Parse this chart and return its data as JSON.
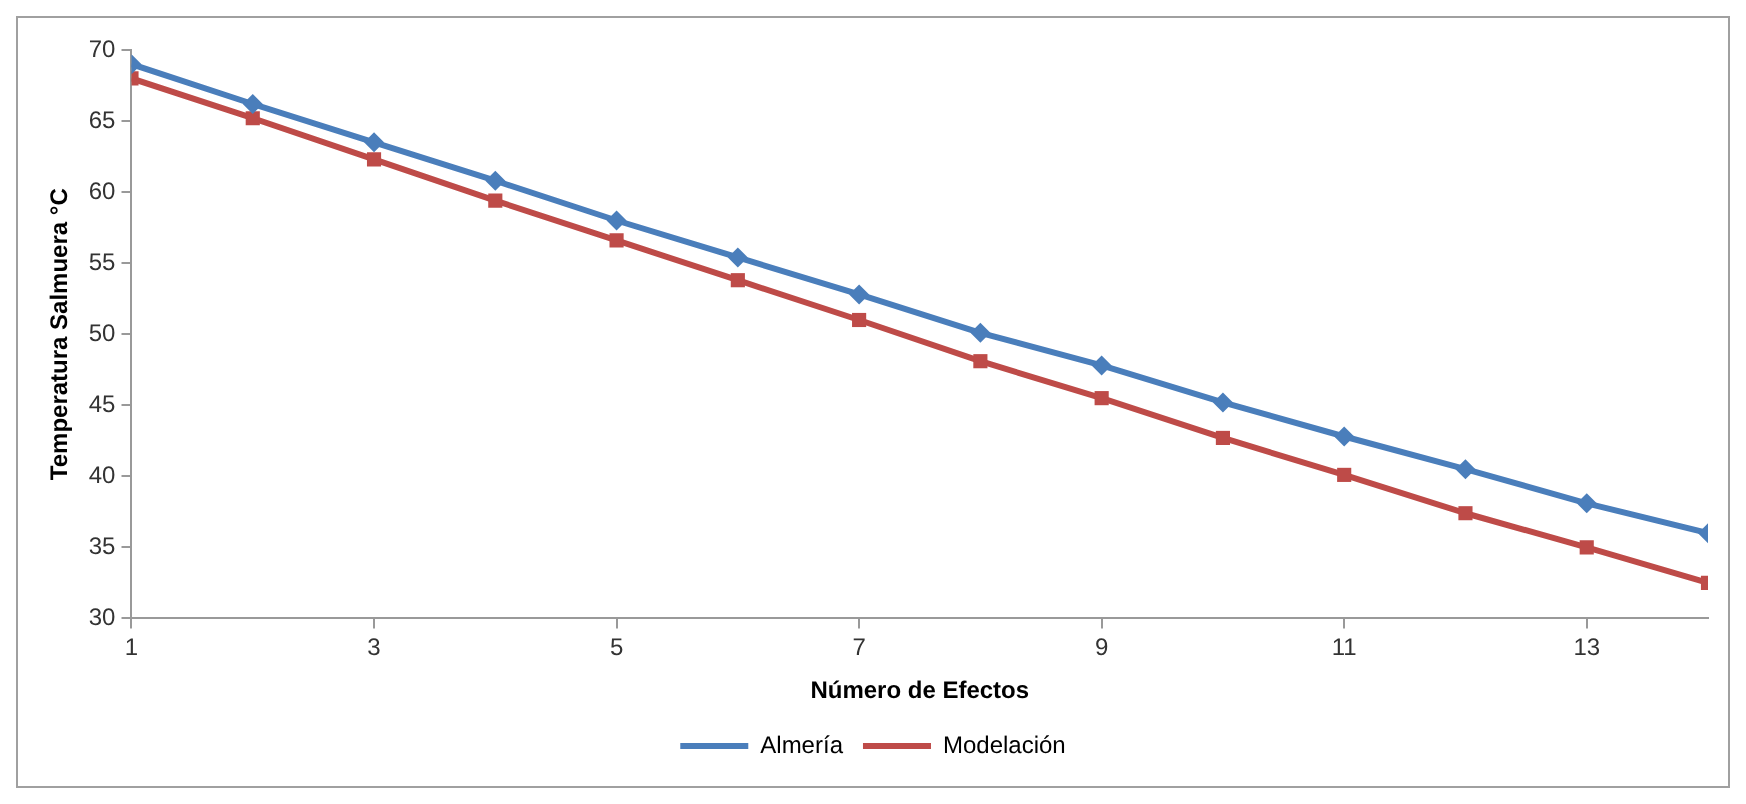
{
  "chart_data": {
    "type": "line",
    "xlabel": "Número de Efectos",
    "ylabel": "Temperatura Salmuera °C",
    "x": [
      1,
      2,
      3,
      4,
      5,
      6,
      7,
      8,
      9,
      10,
      11,
      12,
      13,
      14
    ],
    "series": [
      {
        "name": "Almería",
        "color": "#4a7ebb",
        "marker": "diamond",
        "values": [
          69,
          66.2,
          63.5,
          60.8,
          58,
          55.4,
          52.8,
          50.1,
          47.8,
          45.2,
          42.8,
          40.5,
          38.1,
          36
        ]
      },
      {
        "name": "Modelación",
        "color": "#be4b48",
        "marker": "square",
        "values": [
          68,
          65.2,
          62.3,
          59.4,
          56.6,
          53.8,
          51,
          48.1,
          45.5,
          42.7,
          40.1,
          37.4,
          35,
          32.5
        ]
      }
    ],
    "xlim": [
      1,
      14
    ],
    "xticks": [
      1,
      3,
      5,
      7,
      9,
      11,
      13
    ],
    "ylim": [
      30,
      70
    ],
    "yticks": [
      30,
      35,
      40,
      45,
      50,
      55,
      60,
      65,
      70
    ],
    "grid": false,
    "legend": "bottom",
    "line_style": "solid"
  }
}
